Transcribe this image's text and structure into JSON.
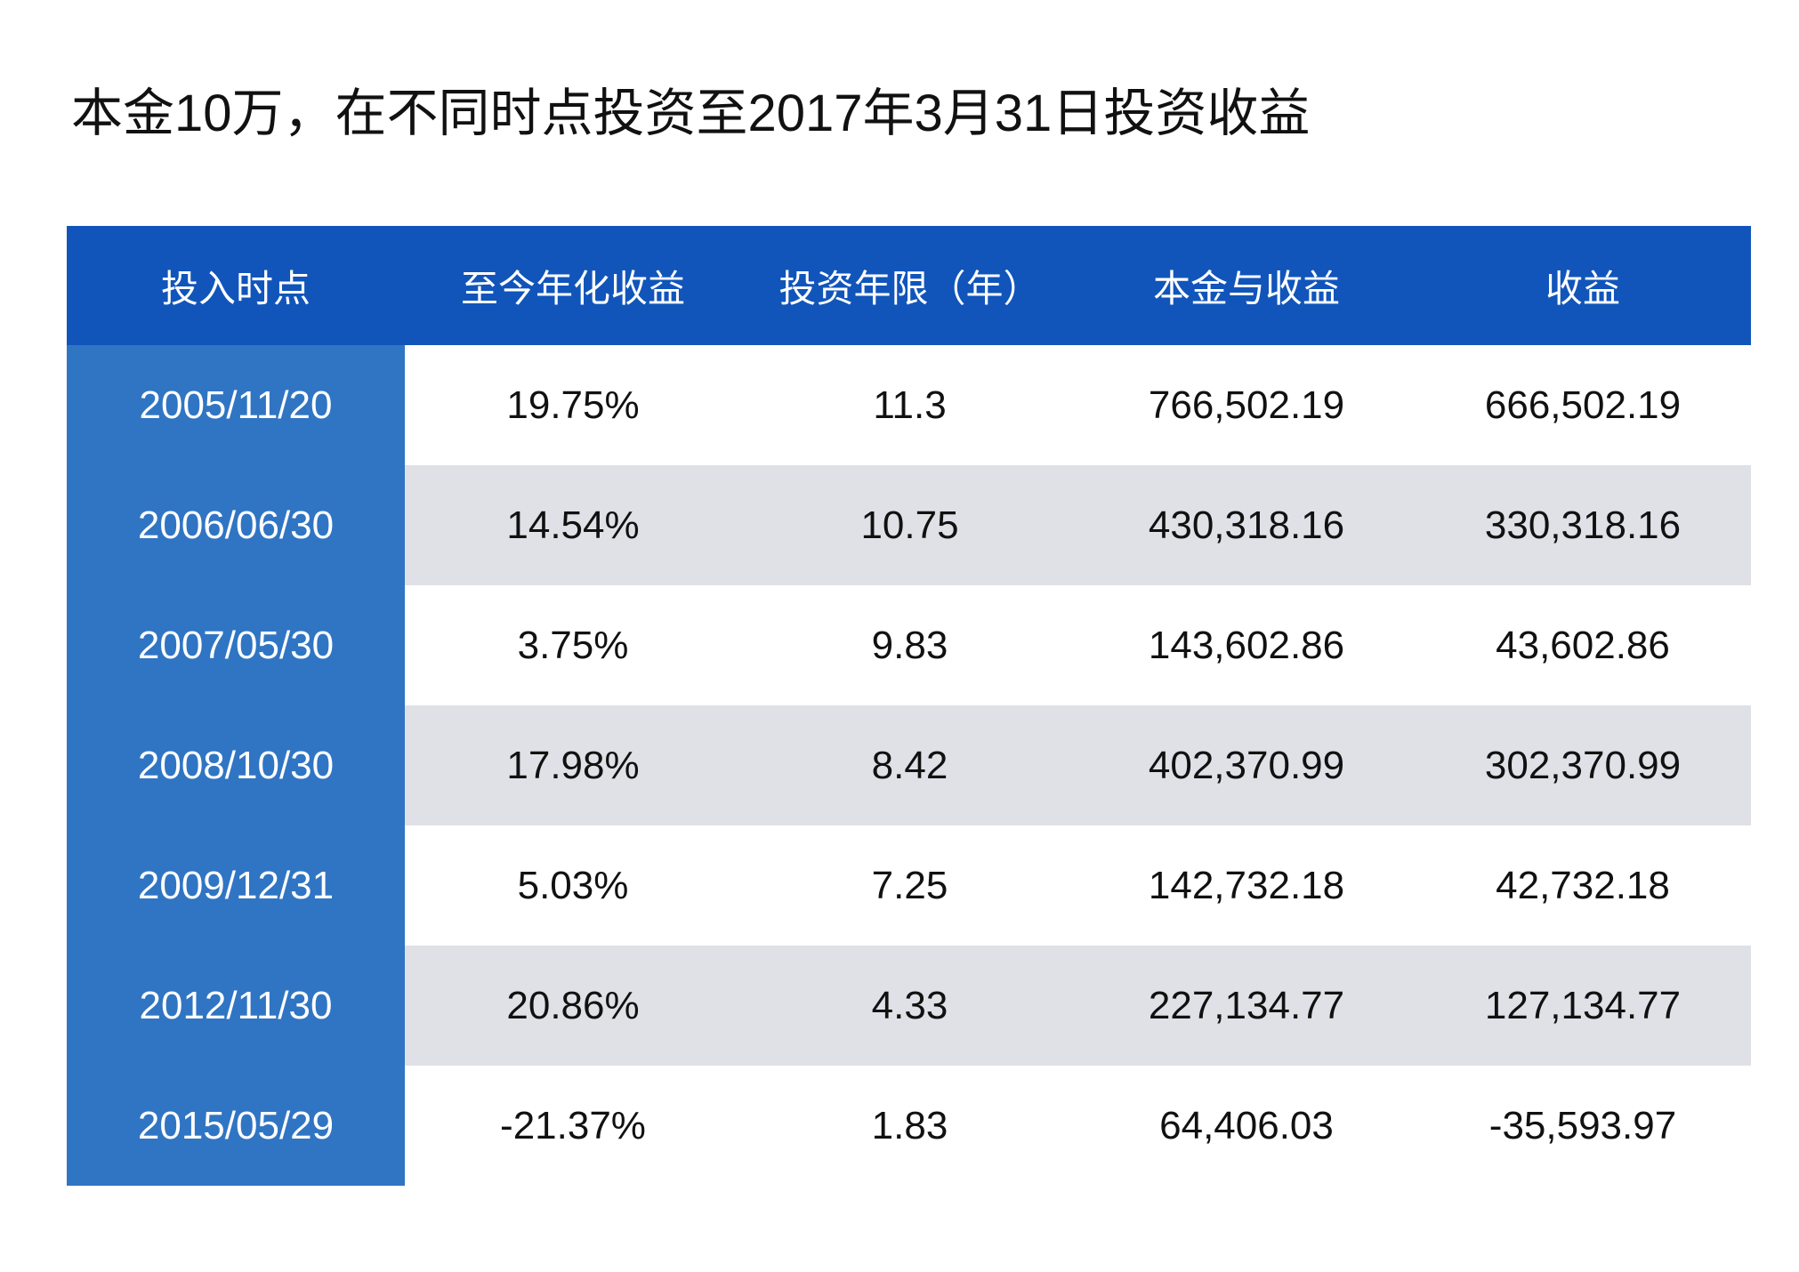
{
  "title": "本金10万，在不同时点投资至2017年3月31日投资收益",
  "table": {
    "headers": [
      "投入时点",
      "至今年化收益",
      "投资年限（年）",
      "本金与收益",
      "收益"
    ],
    "rows": [
      [
        "2005/11/20",
        "19.75%",
        "11.3",
        "766,502.19",
        "666,502.19"
      ],
      [
        "2006/06/30",
        "14.54%",
        "10.75",
        "430,318.16",
        "330,318.16"
      ],
      [
        "2007/05/30",
        "3.75%",
        "9.83",
        "143,602.86",
        "43,602.86"
      ],
      [
        "2008/10/30",
        "17.98%",
        "8.42",
        "402,370.99",
        "302,370.99"
      ],
      [
        "2009/12/31",
        "5.03%",
        "7.25",
        "142,732.18",
        "42,732.18"
      ],
      [
        "2012/11/30",
        "20.86%",
        "4.33",
        "227,134.77",
        "127,134.77"
      ],
      [
        "2015/05/29",
        "-21.37%",
        "1.83",
        "64,406.03",
        "-35,593.97"
      ]
    ]
  },
  "colors": {
    "header_bg": "#1155bb",
    "date_column_bg": "#3075c3",
    "stripe_bg": "#dfe1e6",
    "text": "#111111"
  }
}
